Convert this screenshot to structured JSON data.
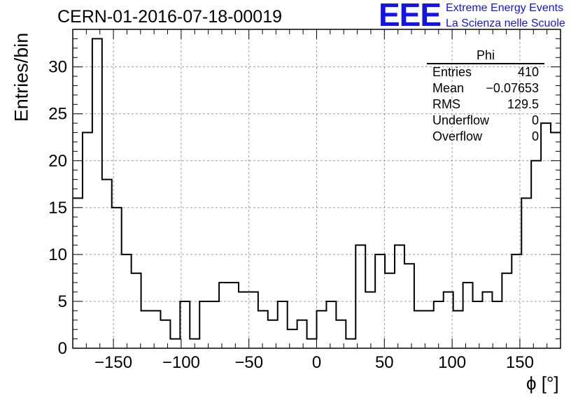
{
  "header": {
    "title": "CERN-01-2016-07-18-00019",
    "logo_text": "EEE",
    "logo_line1": "Extreme Energy Events",
    "logo_line2": "La Scienza nelle Scuole",
    "logo_color": "#1414e6"
  },
  "stats_box": {
    "title": "Phi",
    "rows": [
      {
        "label": "Entries",
        "value": "410"
      },
      {
        "label": "Mean",
        "value": "−0.07653"
      },
      {
        "label": "RMS",
        "value": "129.5"
      },
      {
        "label": "Underflow",
        "value": "0"
      },
      {
        "label": "Overflow",
        "value": "0"
      }
    ]
  },
  "chart_data": {
    "type": "bar",
    "title": "CERN-01-2016-07-18-00019",
    "xlabel": "ϕ [°]",
    "ylabel": "Entries/bin",
    "xlim": [
      -180,
      180
    ],
    "ylim": [
      0,
      34
    ],
    "bin_width": 7.2,
    "x_ticks": [
      -150,
      -100,
      -50,
      0,
      50,
      100,
      150
    ],
    "x_tick_labels": [
      "−150",
      "−100",
      "−50",
      "0",
      "50",
      "100",
      "150"
    ],
    "y_ticks": [
      0,
      5,
      10,
      15,
      20,
      25,
      30
    ],
    "y_tick_labels": [
      "0",
      "5",
      "10",
      "15",
      "20",
      "25",
      "30"
    ],
    "grid": true,
    "style": "step-histogram",
    "line_color": "#000000",
    "values": [
      16,
      23,
      33,
      18,
      15,
      10,
      8,
      4,
      4,
      3,
      1,
      5,
      1,
      5,
      5,
      7,
      7,
      6,
      6,
      4,
      3,
      5,
      2,
      3,
      1,
      4,
      5,
      3,
      1,
      11,
      6,
      10,
      8,
      11,
      9,
      4,
      4,
      5,
      6,
      4,
      7,
      5,
      6,
      5,
      8,
      10,
      16,
      20,
      24,
      23
    ]
  }
}
